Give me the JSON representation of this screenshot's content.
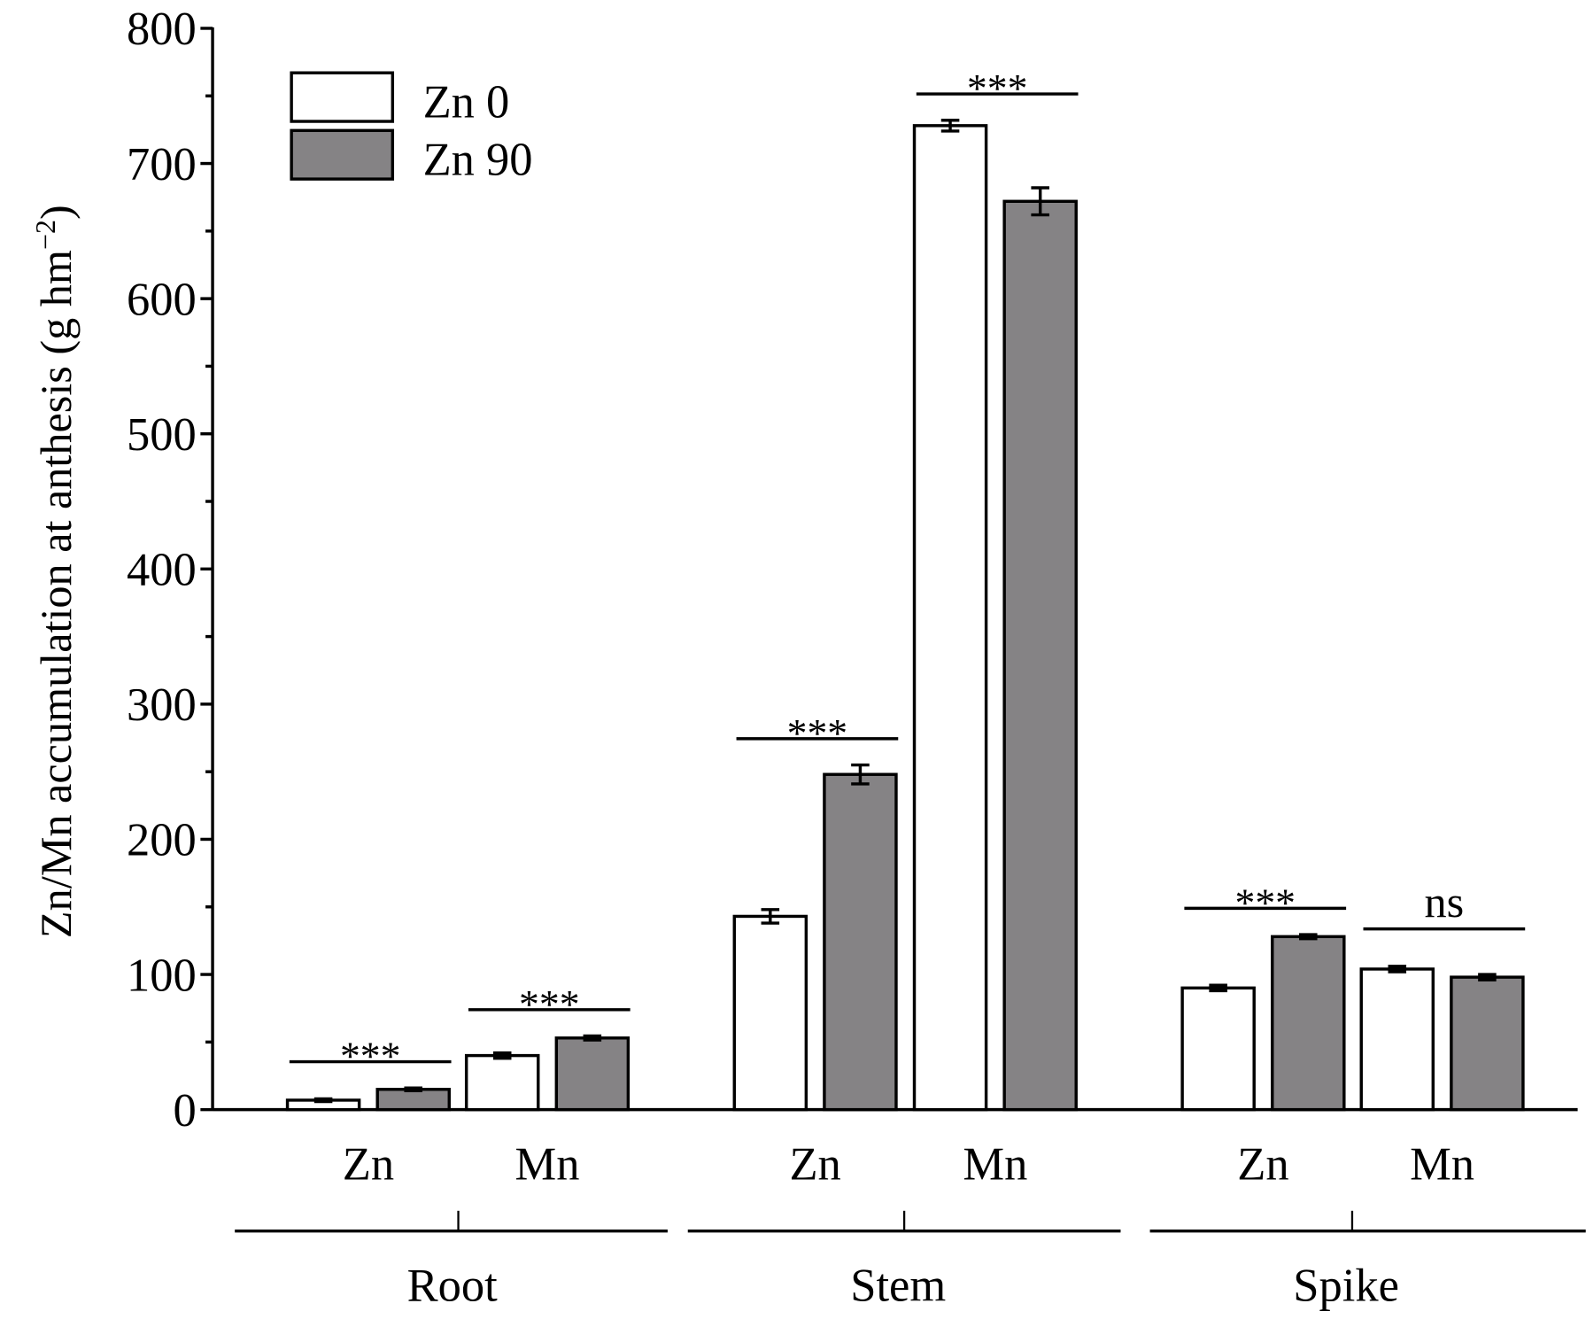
{
  "chart_data": {
    "type": "bar",
    "title": "",
    "ylabel": "Zn/Mn accumulation at anthesis (g hm",
    "ylabel_sup": "−2",
    "ylabel_close": ")",
    "ylim": [
      0,
      800
    ],
    "yticks": [
      0,
      100,
      200,
      300,
      400,
      500,
      600,
      700,
      800
    ],
    "yminor_step": 50,
    "groups": [
      "Root",
      "Stem",
      "Spike"
    ],
    "categories": [
      "Zn",
      "Mn",
      "Zn",
      "Mn",
      "Zn",
      "Mn"
    ],
    "series": [
      {
        "name": "Zn 0",
        "color": "#ffffff",
        "values": [
          7,
          40,
          143,
          728,
          90,
          104
        ],
        "errors": [
          1,
          2,
          5,
          4,
          2,
          2
        ]
      },
      {
        "name": "Zn 90",
        "color": "#858385",
        "values": [
          15,
          53,
          248,
          672,
          128,
          98
        ],
        "errors": [
          1,
          1.5,
          7,
          10,
          1.5,
          2
        ]
      }
    ],
    "significance": [
      "***",
      "***",
      "***",
      "***",
      "***",
      "ns"
    ],
    "legend": {
      "position": "top-left"
    },
    "grid": false
  }
}
